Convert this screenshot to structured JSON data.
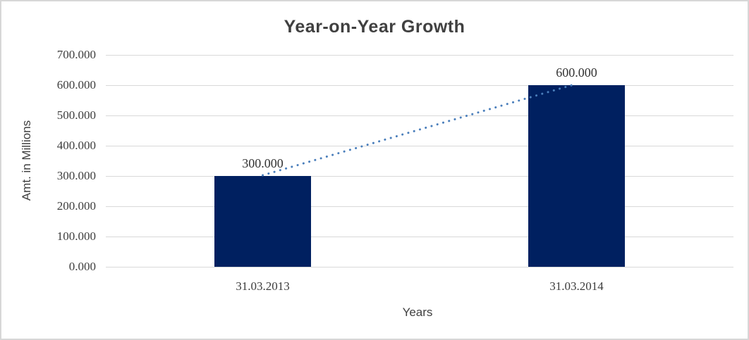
{
  "chart_data": {
    "type": "bar",
    "title": "Year-on-Year Growth",
    "xlabel": "Years",
    "ylabel": "Amt. in Millions",
    "categories": [
      "31.03.2013",
      "31.03.2014"
    ],
    "values": [
      300000,
      600000
    ],
    "data_labels": [
      "300.000",
      "600.000"
    ],
    "ylim": [
      0,
      700000
    ],
    "ytick_step": 100000,
    "ytick_labels": [
      "700.000",
      "600.000",
      "500.000",
      "400.000",
      "300.000",
      "200.000",
      "100.000",
      "0.000"
    ],
    "grid": true,
    "legend": "none",
    "trendline": {
      "type": "linear",
      "style": "dotted",
      "color": "#4a7ebb"
    },
    "colors": {
      "bar": "#002060",
      "gridline": "#d9d9d9",
      "tick_text": "#3d3d3d",
      "title_text": "#404040",
      "border": "#d7d7d7",
      "background": "#ffffff"
    }
  }
}
